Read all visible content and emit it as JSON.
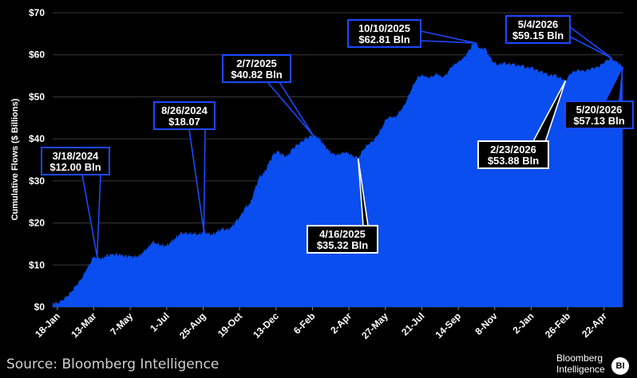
{
  "chart_data": {
    "type": "area",
    "ylabel": "Cumulative Flows ($ Billions)",
    "ylim": [
      0,
      70
    ],
    "yticks": [
      "$0",
      "$10",
      "$20",
      "$30",
      "$40",
      "$50",
      "$60",
      "$70"
    ],
    "ytick_values": [
      0,
      10,
      20,
      30,
      40,
      50,
      60,
      70
    ],
    "xtick_labels": [
      "18-Jan",
      "13-Mar",
      "7-May",
      "1-Jul",
      "25-Aug",
      "19-Oct",
      "13-Dec",
      "6-Feb",
      "2-Apr",
      "27-May",
      "21-Jul",
      "14-Sep",
      "8-Nov",
      "2-Jan",
      "26-Feb",
      "22-Apr"
    ],
    "xtick_dates": [
      "2024-01-18",
      "2024-03-13",
      "2024-05-07",
      "2024-07-01",
      "2024-08-25",
      "2024-10-19",
      "2024-12-13",
      "2025-02-06",
      "2025-04-02",
      "2025-05-27",
      "2025-07-21",
      "2025-09-14",
      "2025-11-08",
      "2026-01-02",
      "2026-02-26",
      "2026-04-22"
    ],
    "grid": true,
    "color": "#0a4ef0",
    "series": [
      {
        "points": [
          [
            "2024-01-11",
            1.0
          ],
          [
            "2024-01-18",
            0.8
          ],
          [
            "2024-01-25",
            1.5
          ],
          [
            "2024-02-01",
            2.4
          ],
          [
            "2024-02-08",
            3.5
          ],
          [
            "2024-02-15",
            5.0
          ],
          [
            "2024-02-22",
            6.3
          ],
          [
            "2024-02-29",
            8.2
          ],
          [
            "2024-03-06",
            10.2
          ],
          [
            "2024-03-12",
            11.8
          ],
          [
            "2024-03-18",
            12.0
          ],
          [
            "2024-03-25",
            11.5
          ],
          [
            "2024-04-01",
            12.3
          ],
          [
            "2024-04-15",
            12.6
          ],
          [
            "2024-04-29",
            12.2
          ],
          [
            "2024-05-13",
            12.0
          ],
          [
            "2024-05-20",
            12.2
          ],
          [
            "2024-05-27",
            13.2
          ],
          [
            "2024-06-03",
            14.2
          ],
          [
            "2024-06-10",
            15.6
          ],
          [
            "2024-06-17",
            15.0
          ],
          [
            "2024-06-24",
            14.7
          ],
          [
            "2024-07-01",
            14.6
          ],
          [
            "2024-07-08",
            15.6
          ],
          [
            "2024-07-15",
            16.5
          ],
          [
            "2024-07-22",
            17.6
          ],
          [
            "2024-07-29",
            17.6
          ],
          [
            "2024-08-05",
            17.4
          ],
          [
            "2024-08-12",
            17.5
          ],
          [
            "2024-08-19",
            17.3
          ],
          [
            "2024-08-26",
            18.07
          ],
          [
            "2024-09-02",
            17.4
          ],
          [
            "2024-09-09",
            17.3
          ],
          [
            "2024-09-16",
            18.0
          ],
          [
            "2024-09-23",
            18.6
          ],
          [
            "2024-09-30",
            18.4
          ],
          [
            "2024-10-07",
            19.0
          ],
          [
            "2024-10-14",
            20.5
          ],
          [
            "2024-10-21",
            21.8
          ],
          [
            "2024-10-28",
            23.8
          ],
          [
            "2024-11-04",
            24.5
          ],
          [
            "2024-11-11",
            28.0
          ],
          [
            "2024-11-18",
            31.0
          ],
          [
            "2024-11-25",
            31.8
          ],
          [
            "2024-12-02",
            34.2
          ],
          [
            "2024-12-09",
            36.3
          ],
          [
            "2024-12-16",
            37.0
          ],
          [
            "2024-12-23",
            36.2
          ],
          [
            "2024-12-30",
            35.8
          ],
          [
            "2025-01-06",
            37.5
          ],
          [
            "2025-01-13",
            38.5
          ],
          [
            "2025-01-20",
            39.2
          ],
          [
            "2025-01-27",
            40.1
          ],
          [
            "2025-02-03",
            40.6
          ],
          [
            "2025-02-07",
            40.82
          ],
          [
            "2025-02-14",
            40.4
          ],
          [
            "2025-02-21",
            39.0
          ],
          [
            "2025-02-28",
            37.6
          ],
          [
            "2025-03-07",
            36.5
          ],
          [
            "2025-03-14",
            36.1
          ],
          [
            "2025-03-21",
            36.5
          ],
          [
            "2025-03-28",
            36.8
          ],
          [
            "2025-04-04",
            36.2
          ],
          [
            "2025-04-11",
            35.6
          ],
          [
            "2025-04-16",
            35.32
          ],
          [
            "2025-04-23",
            37.2
          ],
          [
            "2025-04-30",
            38.5
          ],
          [
            "2025-05-07",
            39.2
          ],
          [
            "2025-05-14",
            40.5
          ],
          [
            "2025-05-21",
            42.3
          ],
          [
            "2025-05-28",
            44.6
          ],
          [
            "2025-06-04",
            45.2
          ],
          [
            "2025-06-11",
            45.0
          ],
          [
            "2025-06-18",
            46.5
          ],
          [
            "2025-06-25",
            48.0
          ],
          [
            "2025-07-02",
            50.5
          ],
          [
            "2025-07-09",
            53.0
          ],
          [
            "2025-07-16",
            54.8
          ],
          [
            "2025-07-23",
            55.0
          ],
          [
            "2025-07-30",
            54.5
          ],
          [
            "2025-08-06",
            54.8
          ],
          [
            "2025-08-13",
            55.4
          ],
          [
            "2025-08-20",
            54.6
          ],
          [
            "2025-08-27",
            55.2
          ],
          [
            "2025-09-03",
            57.0
          ],
          [
            "2025-09-10",
            57.8
          ],
          [
            "2025-09-17",
            58.6
          ],
          [
            "2025-09-24",
            59.5
          ],
          [
            "2025-10-01",
            61.2
          ],
          [
            "2025-10-06",
            62.6
          ],
          [
            "2025-10-10",
            62.81
          ],
          [
            "2025-10-17",
            61.3
          ],
          [
            "2025-10-24",
            61.6
          ],
          [
            "2025-10-31",
            59.5
          ],
          [
            "2025-11-07",
            58.0
          ],
          [
            "2025-11-14",
            57.5
          ],
          [
            "2025-11-21",
            58.0
          ],
          [
            "2025-11-28",
            57.7
          ],
          [
            "2025-12-05",
            57.8
          ],
          [
            "2025-12-12",
            57.3
          ],
          [
            "2025-12-19",
            57.5
          ],
          [
            "2025-12-26",
            56.8
          ],
          [
            "2026-01-02",
            57.0
          ],
          [
            "2026-01-09",
            56.4
          ],
          [
            "2026-01-16",
            56.0
          ],
          [
            "2026-01-23",
            55.6
          ],
          [
            "2026-01-30",
            55.0
          ],
          [
            "2026-02-06",
            55.3
          ],
          [
            "2026-02-13",
            54.5
          ],
          [
            "2026-02-20",
            54.1
          ],
          [
            "2026-02-23",
            53.88
          ],
          [
            "2026-03-02",
            55.6
          ],
          [
            "2026-03-09",
            56.2
          ],
          [
            "2026-03-16",
            56.5
          ],
          [
            "2026-03-23",
            56.2
          ],
          [
            "2026-03-30",
            56.6
          ],
          [
            "2026-04-06",
            57.0
          ],
          [
            "2026-04-13",
            57.2
          ],
          [
            "2026-04-20",
            58.0
          ],
          [
            "2026-04-27",
            58.9
          ],
          [
            "2026-05-04",
            59.15
          ],
          [
            "2026-05-08",
            58.6
          ],
          [
            "2026-05-13",
            58.2
          ],
          [
            "2026-05-17",
            57.6
          ],
          [
            "2026-05-20",
            57.13
          ]
        ]
      }
    ],
    "annotations": [
      {
        "date": "3/18/2024",
        "value_label": "$12.00 Bln",
        "x": "2024-03-18",
        "y": 12.0,
        "style": "blue"
      },
      {
        "date": "8/26/2024",
        "value_label": "$18.07",
        "x": "2024-08-26",
        "y": 18.07,
        "style": "blue"
      },
      {
        "date": "2/7/2025",
        "value_label": "$40.82 Bln",
        "x": "2025-02-07",
        "y": 40.82,
        "style": "blue"
      },
      {
        "date": "4/16/2025",
        "value_label": "$35.32 Bln",
        "x": "2025-04-16",
        "y": 35.32,
        "style": "white"
      },
      {
        "date": "10/10/2025",
        "value_label": "$62.81 Bln",
        "x": "2025-10-10",
        "y": 62.81,
        "style": "blue"
      },
      {
        "date": "2/23/2026",
        "value_label": "$53.88 Bln",
        "x": "2026-02-23",
        "y": 53.88,
        "style": "white"
      },
      {
        "date": "5/4/2026",
        "value_label": "$59.15 Bln",
        "x": "2026-05-04",
        "y": 59.15,
        "style": "blue"
      },
      {
        "date": "5/20/2026",
        "value_label": "$57.13 Bln",
        "x": "2026-05-20",
        "y": 57.13,
        "style": "blue"
      }
    ]
  },
  "source": "Source: Bloomberg Intelligence",
  "logo": {
    "line1": "Bloomberg",
    "line2": "Intelligence",
    "badge": "BI"
  }
}
